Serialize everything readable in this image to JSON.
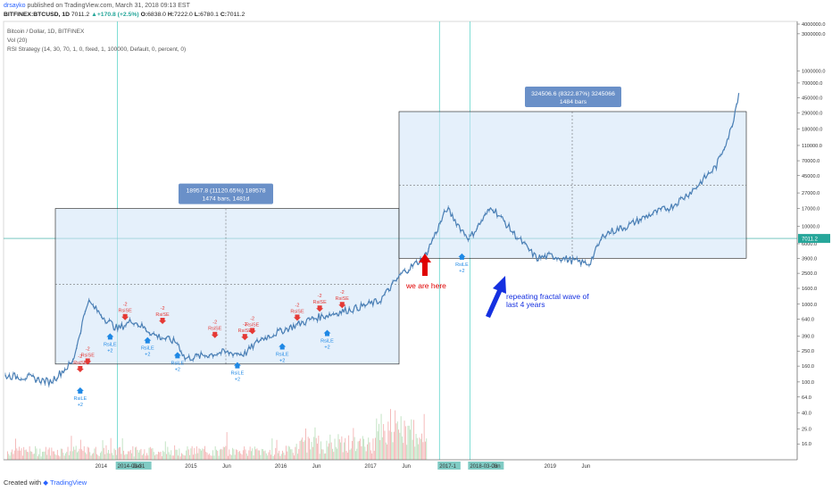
{
  "header": {
    "author": "drsayko",
    "published": "published on TradingView.com, March 31, 2018 09:13 EST",
    "symbol": "BITFINEX:BTCUSD, 1D",
    "last": "7011.2",
    "change": "▲+170.8 (+2.5%)",
    "o_label": "O:",
    "o": "6838.0",
    "h_label": "H:",
    "h": "7222.0",
    "l_label": "L:",
    "l": "6780.1",
    "c_label": "C:",
    "c": "7011.2"
  },
  "legend": {
    "title": "Bitcoin / Dollar, 1D, BITFINEX",
    "volume": "Vol (20)",
    "strategy": "RSI Strategy (14, 30, 70, 1, 0, fixed, 1, 100000, Default, 0, percent, 0)"
  },
  "footer": {
    "created": "Created with",
    "brand": "TradingView"
  },
  "colors": {
    "price_bar": "#4a7fb5",
    "box_fill": "#cfe3f7",
    "box_stroke": "#1a1a1a",
    "measure_label": "#6a90c8",
    "signal_sell": "#e53935",
    "signal_buy": "#1e88e5",
    "vol_up": "#a5d6a7",
    "vol_down": "#ef9a9a",
    "annotation_red": "#e00000",
    "annotation_blue": "#1530e0",
    "last_price": "#26a69a"
  },
  "chart_data": {
    "type": "line",
    "y_scale": "log",
    "ylim": [
      10,
      4000000
    ],
    "y_ticks": [
      "4000000.0",
      "3000000.0",
      "1000000.0",
      "700000.0",
      "450000.0",
      "290000.0",
      "180000.0",
      "110000.0",
      "70000.0",
      "45000.0",
      "27000.0",
      "17000.0",
      "10000.0",
      "6000.0",
      "3900.0",
      "2500.0",
      "1600.0",
      "1000.0",
      "640.0",
      "390.0",
      "250.0",
      "160.0",
      "100.0",
      "64.0",
      "40.0",
      "25.0",
      "16.0"
    ],
    "x_labels": [
      "2014",
      "2014-03-31",
      "Jun",
      "2015",
      "Jun",
      "2016",
      "Jun",
      "2017",
      "Jun",
      "2017-1",
      "2018-03-03",
      "Jun",
      "2019",
      "Jun"
    ],
    "last_price_label": "7011.2",
    "price_series": [
      {
        "x": "2013-01",
        "y": 120
      },
      {
        "x": "2013-04",
        "y": 115
      },
      {
        "x": "2013-07",
        "y": 100
      },
      {
        "x": "2013-10",
        "y": 180
      },
      {
        "x": "2013-12",
        "y": 1100
      },
      {
        "x": "2014-02",
        "y": 700
      },
      {
        "x": "2014-04",
        "y": 480
      },
      {
        "x": "2014-06",
        "y": 620
      },
      {
        "x": "2014-09",
        "y": 400
      },
      {
        "x": "2014-12",
        "y": 320
      },
      {
        "x": "2015-01",
        "y": 200
      },
      {
        "x": "2015-06",
        "y": 240
      },
      {
        "x": "2015-09",
        "y": 230
      },
      {
        "x": "2015-11",
        "y": 350
      },
      {
        "x": "2016-01",
        "y": 420
      },
      {
        "x": "2016-06",
        "y": 650
      },
      {
        "x": "2016-12",
        "y": 900
      },
      {
        "x": "2017-03",
        "y": 1100
      },
      {
        "x": "2017-06",
        "y": 2500
      },
      {
        "x": "2017-09",
        "y": 4000
      },
      {
        "x": "2017-12",
        "y": 17000
      },
      {
        "x": "2018-02",
        "y": 9000
      },
      {
        "x": "2018-03",
        "y": 7011
      }
    ],
    "projection_series": [
      {
        "x": "2018-03",
        "y": 7011
      },
      {
        "x": "2018-06",
        "y": 18000
      },
      {
        "x": "2018-09",
        "y": 8000
      },
      {
        "x": "2018-12",
        "y": 3900
      },
      {
        "x": "2019-02",
        "y": 4200
      },
      {
        "x": "2019-05",
        "y": 3600
      },
      {
        "x": "2019-07",
        "y": 3300
      },
      {
        "x": "2019-09",
        "y": 8000
      },
      {
        "x": "2019-12",
        "y": 10000
      },
      {
        "x": "2020-03",
        "y": 14000
      },
      {
        "x": "2020-06",
        "y": 18000
      },
      {
        "x": "2020-09",
        "y": 30000
      },
      {
        "x": "2020-12",
        "y": 60000
      },
      {
        "x": "2021-02",
        "y": 180000
      },
      {
        "x": "2021-03",
        "y": 520000
      }
    ],
    "annotations": [
      {
        "text": "we are here",
        "color": "red"
      },
      {
        "text": "repeating  fractal wave of",
        "color": "blue"
      },
      {
        "text": "last 4 years",
        "color": "blue"
      }
    ],
    "measurements": [
      {
        "line1": "18957.8 (11120.65%) 189578",
        "line2": "1474 bars, 1481d"
      },
      {
        "line1": "324506.6 (8322.87%) 3245066",
        "line2": "1484 bars"
      }
    ],
    "signals": [
      {
        "type": "sell",
        "label": "RsiSE",
        "qty": "-2",
        "x": "2013-11",
        "y": 120
      },
      {
        "type": "sell",
        "label": "RsiSE",
        "qty": "-2",
        "x": "2013-12",
        "y": 150
      },
      {
        "type": "buy",
        "label": "RsiLE",
        "qty": "+2",
        "x": "2013-11",
        "y": 95
      },
      {
        "type": "sell",
        "label": "RsiSE",
        "qty": "-2",
        "x": "2014-05",
        "y": 560
      },
      {
        "type": "buy",
        "label": "RsiLE",
        "qty": "+2",
        "x": "2014-03",
        "y": 470
      },
      {
        "type": "sell",
        "label": "RsiSE",
        "qty": "-2",
        "x": "2014-10",
        "y": 500
      },
      {
        "type": "buy",
        "label": "RsiLE",
        "qty": "+2",
        "x": "2014-08",
        "y": 420
      },
      {
        "type": "buy",
        "label": "RsiLE",
        "qty": "+2",
        "x": "2014-12",
        "y": 270
      },
      {
        "type": "sell",
        "label": "RsiSE",
        "qty": "-2",
        "x": "2015-05",
        "y": 330
      },
      {
        "type": "sell",
        "label": "RsiSE",
        "qty": "-2",
        "x": "2015-09",
        "y": 310
      },
      {
        "type": "buy",
        "label": "RsiLE",
        "qty": "+2",
        "x": "2015-08",
        "y": 200
      },
      {
        "type": "sell",
        "label": "RsiSE",
        "qty": "-2",
        "x": "2015-10",
        "y": 370
      },
      {
        "type": "buy",
        "label": "RsiLE",
        "qty": "+2",
        "x": "2016-02",
        "y": 350
      },
      {
        "type": "sell",
        "label": "RsiSE",
        "qty": "-2",
        "x": "2016-04",
        "y": 550
      },
      {
        "type": "sell",
        "label": "RsiSE",
        "qty": "-2",
        "x": "2016-07",
        "y": 720
      },
      {
        "type": "buy",
        "label": "RsiLE",
        "qty": "+2",
        "x": "2016-08",
        "y": 520
      },
      {
        "type": "sell",
        "label": "RsiSE",
        "qty": "-2",
        "x": "2016-10",
        "y": 800
      },
      {
        "type": "buy",
        "label": "RsiLE",
        "qty": "+2",
        "x": "2018-02",
        "y": 5000
      }
    ]
  }
}
